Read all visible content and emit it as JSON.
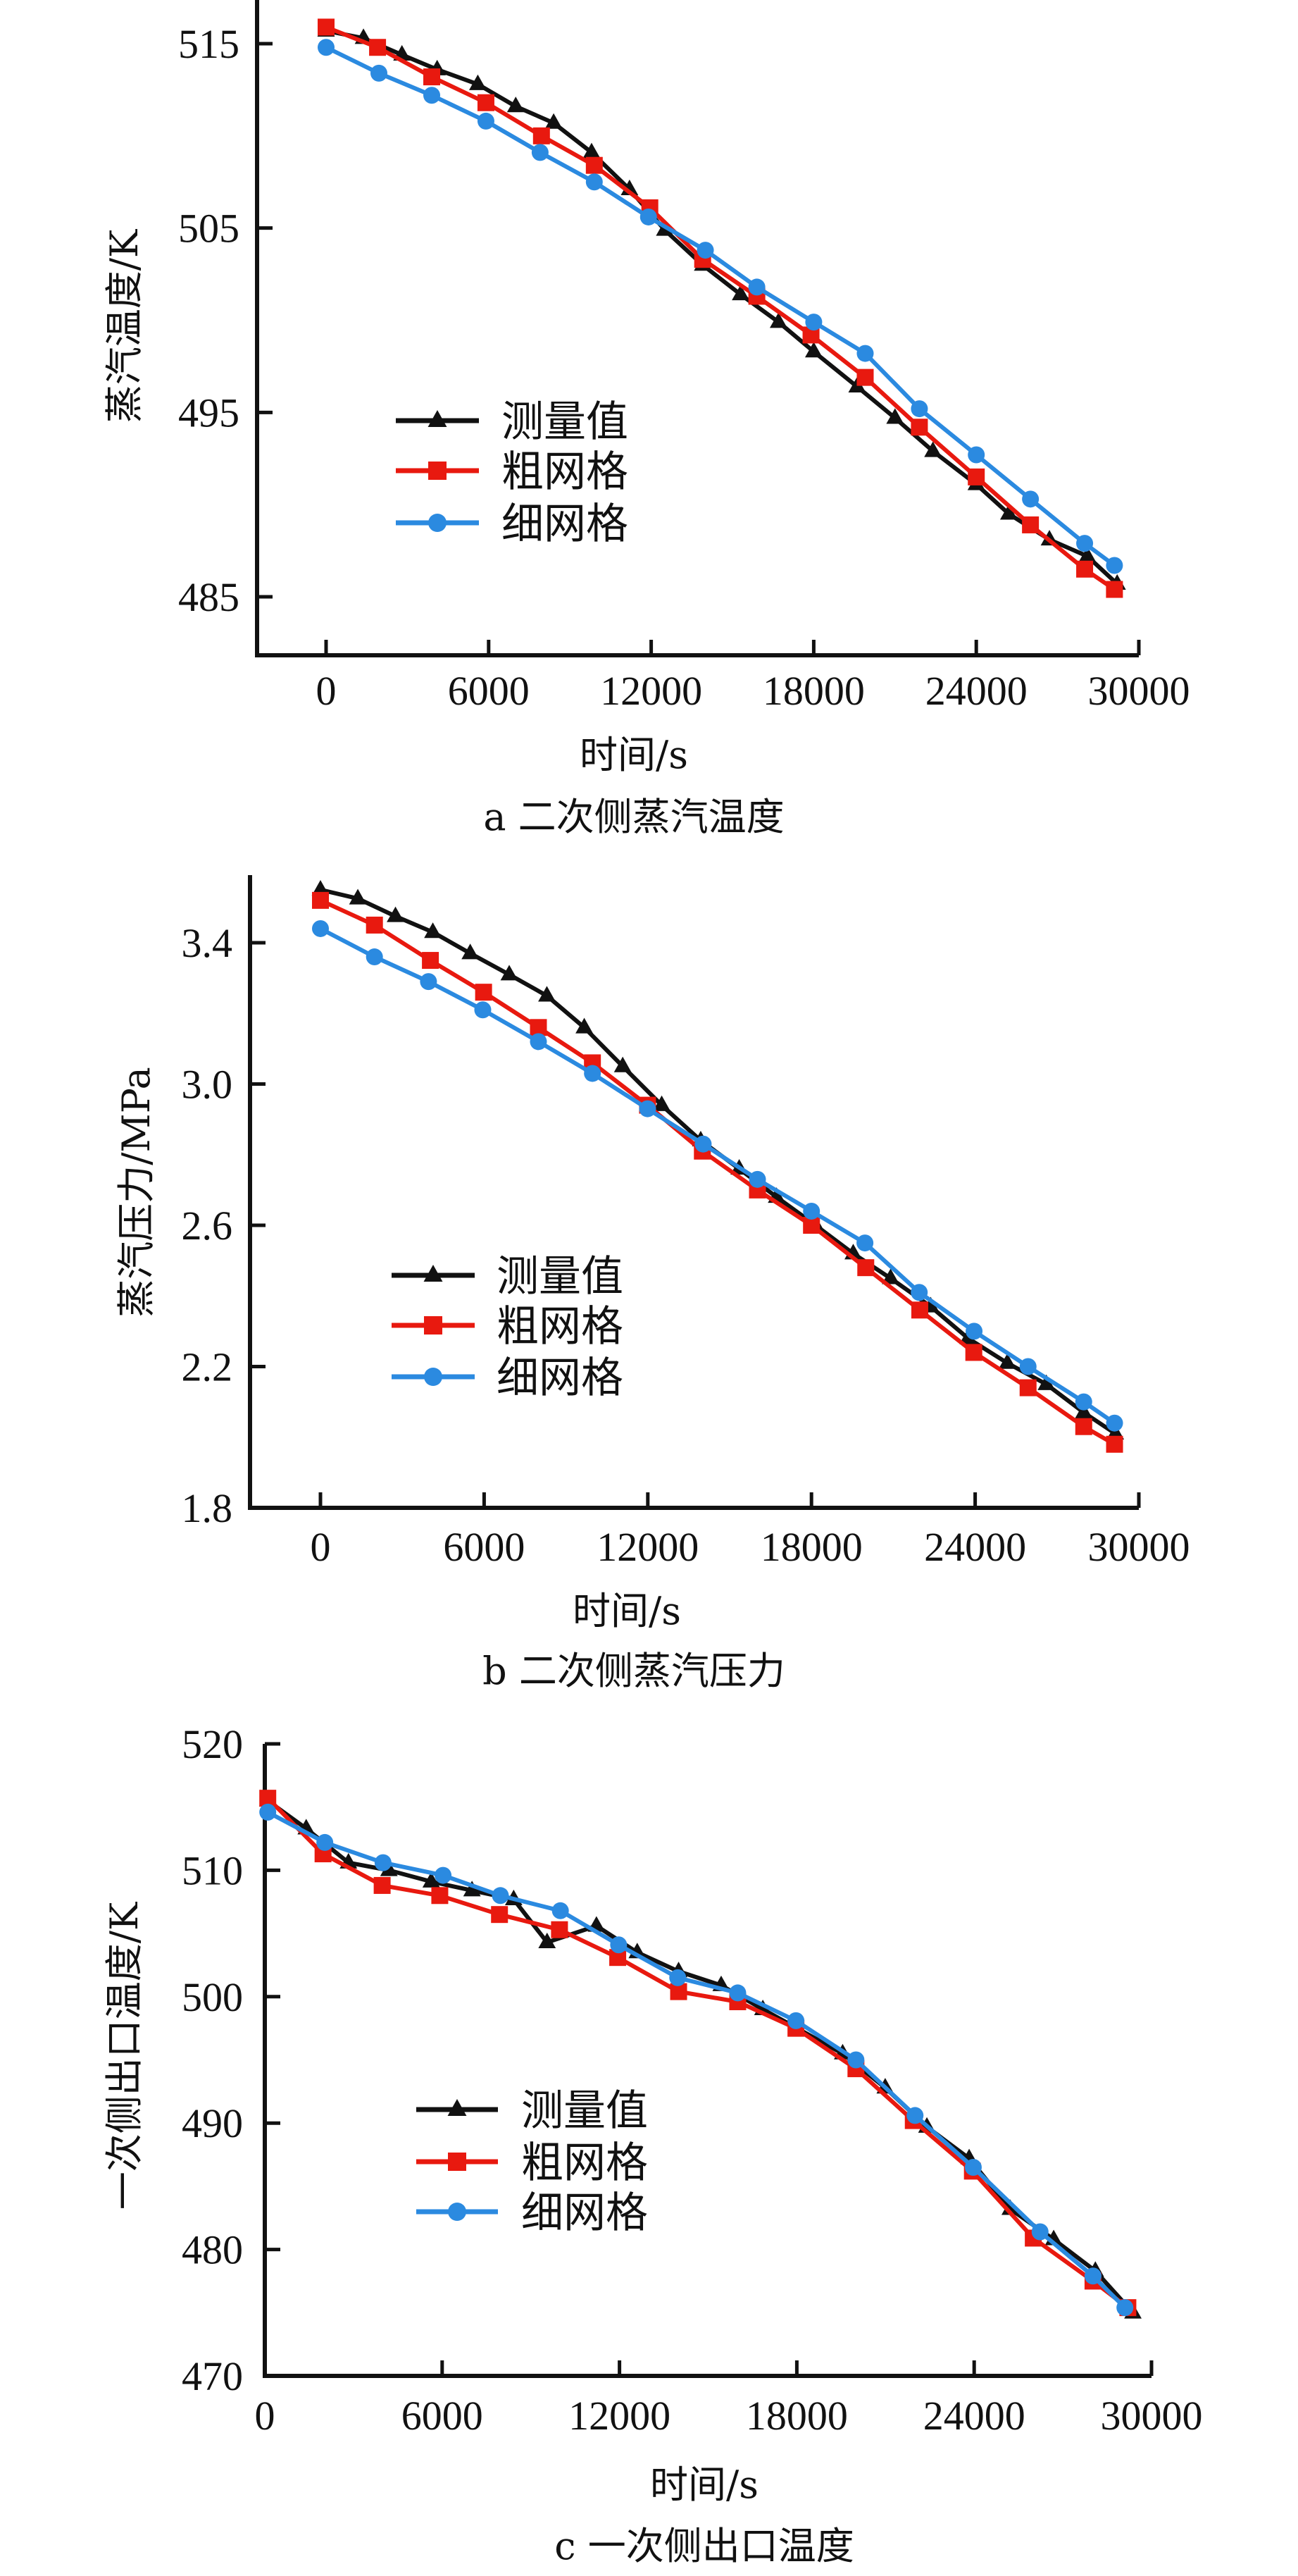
{
  "chart_data": [
    {
      "id": "a",
      "type": "line",
      "caption": "a  二次侧蒸汽温度",
      "xlabel": "时间/s",
      "ylabel": "蒸汽温度/K",
      "xlim": [
        -2500,
        30000
      ],
      "ylim": [
        481.8,
        518
      ],
      "xticks": [
        0,
        6000,
        12000,
        18000,
        24000,
        30000
      ],
      "xtick_labels": [
        "0",
        "6000",
        "12000",
        "18000",
        "24000",
        "30000"
      ],
      "yticks": [
        485,
        495,
        505,
        515
      ],
      "ytick_labels": [
        "485",
        "495",
        "505",
        "515"
      ],
      "grid": false,
      "legend_position": "center-left",
      "series": [
        {
          "name": "测量值",
          "color": "#111111",
          "marker": "triangle",
          "x": [
            0,
            1380,
            2800,
            4100,
            5600,
            7000,
            8400,
            9800,
            11200,
            12500,
            13900,
            15300,
            16700,
            18000,
            19600,
            21000,
            22400,
            24000,
            25200,
            26700,
            28100,
            29200
          ],
          "y": [
            515.7,
            515.3,
            514.4,
            513.6,
            512.8,
            511.6,
            510.7,
            509.1,
            507.1,
            504.9,
            503.0,
            501.4,
            499.9,
            498.3,
            496.4,
            494.7,
            492.9,
            491.1,
            489.5,
            488.1,
            487.2,
            485.7
          ]
        },
        {
          "name": "粗网格",
          "color": "#e8190f",
          "marker": "square",
          "x": [
            0,
            1900,
            3900,
            5900,
            7950,
            9900,
            11950,
            13900,
            15900,
            17900,
            19900,
            21900,
            24000,
            26000,
            28000,
            29100
          ],
          "y": [
            515.9,
            514.8,
            513.2,
            511.8,
            510.0,
            508.4,
            506.1,
            503.3,
            501.3,
            499.2,
            496.9,
            494.2,
            491.5,
            488.9,
            486.5,
            485.4
          ]
        },
        {
          "name": "细网格",
          "color": "#2b8ae0",
          "marker": "circle",
          "x": [
            0,
            1950,
            3900,
            5900,
            7900,
            9900,
            11900,
            14000,
            15900,
            18000,
            19900,
            21900,
            24000,
            26000,
            28000,
            29100
          ],
          "y": [
            514.8,
            513.4,
            512.2,
            510.8,
            509.1,
            507.5,
            505.6,
            503.8,
            501.8,
            499.9,
            498.2,
            495.2,
            492.7,
            490.3,
            487.9,
            486.7
          ]
        }
      ]
    },
    {
      "id": "b",
      "type": "line",
      "caption": "b  二次侧蒸汽压力",
      "xlabel": "时间/s",
      "ylabel": "蒸汽压力/MPa",
      "xlim": [
        -2500,
        30000
      ],
      "ylim": [
        1.8,
        3.59
      ],
      "xticks": [
        0,
        6000,
        12000,
        18000,
        24000,
        30000
      ],
      "xtick_labels": [
        "0",
        "6000",
        "12000",
        "18000",
        "24000",
        "30000"
      ],
      "yticks": [
        1.8,
        2.2,
        2.6,
        3.0,
        3.4
      ],
      "ytick_labels": [
        "1.8",
        "2.2",
        "2.6",
        "3.0",
        "3.4"
      ],
      "grid": false,
      "legend_position": "center-left",
      "series": [
        {
          "name": "测量值",
          "color": "#111111",
          "marker": "triangle",
          "x": [
            0,
            1370,
            2750,
            4120,
            5490,
            6920,
            8300,
            9670,
            11080,
            12510,
            13940,
            15350,
            16720,
            18150,
            19530,
            20900,
            22370,
            23740,
            25180,
            26610,
            27980,
            29140
          ],
          "y": [
            3.55,
            3.525,
            3.475,
            3.43,
            3.37,
            3.31,
            3.25,
            3.16,
            3.05,
            2.94,
            2.84,
            2.76,
            2.68,
            2.6,
            2.52,
            2.45,
            2.37,
            2.28,
            2.21,
            2.15,
            2.07,
            2.01
          ]
        },
        {
          "name": "粗网格",
          "color": "#e8190f",
          "marker": "square",
          "x": [
            0,
            1980,
            4030,
            5980,
            7990,
            9970,
            11990,
            14000,
            16020,
            18000,
            19990,
            21970,
            23950,
            25940,
            27980,
            29110
          ],
          "y": [
            3.52,
            3.45,
            3.35,
            3.26,
            3.16,
            3.06,
            2.94,
            2.81,
            2.7,
            2.6,
            2.48,
            2.36,
            2.24,
            2.14,
            2.03,
            1.98
          ]
        },
        {
          "name": "细网格",
          "color": "#2b8ae0",
          "marker": "circle",
          "x": [
            0,
            1980,
            3960,
            5950,
            7990,
            9970,
            11990,
            14030,
            16020,
            18000,
            19960,
            21950,
            23960,
            25940,
            27980,
            29110
          ],
          "y": [
            3.44,
            3.36,
            3.29,
            3.21,
            3.12,
            3.03,
            2.93,
            2.83,
            2.73,
            2.64,
            2.55,
            2.41,
            2.3,
            2.2,
            2.1,
            2.04
          ]
        }
      ]
    },
    {
      "id": "c",
      "type": "line",
      "caption": "c  一次侧出口温度",
      "xlabel": "时间/s",
      "ylabel": "一次侧出口温度/K",
      "xlim": [
        0,
        30000
      ],
      "ylim": [
        470,
        520
      ],
      "xticks": [
        0,
        6000,
        12000,
        18000,
        24000,
        30000
      ],
      "xtick_labels": [
        "0",
        "6000",
        "12000",
        "18000",
        "24000",
        "30000"
      ],
      "yticks": [
        470,
        480,
        490,
        500,
        510,
        520
      ],
      "ytick_labels": [
        "470",
        "480",
        "490",
        "500",
        "510",
        "520"
      ],
      "grid": false,
      "legend_position": "center-left",
      "series": [
        {
          "name": "测量值",
          "color": "#111111",
          "marker": "triangle",
          "x": [
            100,
            1400,
            2830,
            4200,
            5630,
            7010,
            8420,
            9550,
            11220,
            12600,
            14000,
            15440,
            16850,
            19550,
            20990,
            22400,
            23830,
            25220,
            26690,
            28100,
            29370
          ],
          "y": [
            515.5,
            513.3,
            510.6,
            510.0,
            509.1,
            508.4,
            507.7,
            504.3,
            505.6,
            503.5,
            502.0,
            500.9,
            499.0,
            495.5,
            492.8,
            489.7,
            487.2,
            483.2,
            480.8,
            478.3,
            475.0
          ]
        },
        {
          "name": "粗网格",
          "color": "#e8190f",
          "marker": "square",
          "x": [
            100,
            1970,
            3970,
            5920,
            7940,
            9970,
            11940,
            14000,
            16000,
            17970,
            20000,
            21940,
            23940,
            26000,
            28020,
            29200
          ],
          "y": [
            515.7,
            511.3,
            508.8,
            508.0,
            506.5,
            505.3,
            503.1,
            500.4,
            499.6,
            497.5,
            494.3,
            490.2,
            486.2,
            480.9,
            477.5,
            475.4
          ]
        },
        {
          "name": "细网格",
          "color": "#2b8ae0",
          "marker": "circle",
          "x": [
            100,
            2030,
            4000,
            6030,
            7970,
            10000,
            11970,
            13970,
            16000,
            17970,
            20000,
            22000,
            23970,
            26230,
            28020,
            29100
          ],
          "y": [
            514.6,
            512.2,
            510.6,
            509.6,
            508.0,
            506.8,
            504.1,
            501.5,
            500.3,
            498.1,
            495.0,
            490.6,
            486.5,
            481.4,
            477.9,
            475.4
          ]
        }
      ]
    }
  ]
}
